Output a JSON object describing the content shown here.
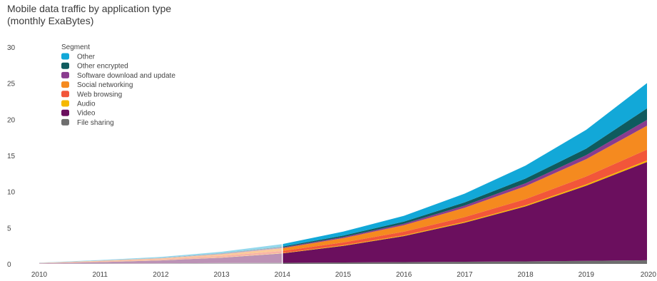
{
  "title": "Mobile data traffic by application type",
  "subtitle": "(monthly ExaBytes)",
  "chart_data": {
    "type": "area",
    "stacked": true,
    "title": "Mobile data traffic by application type",
    "subtitle": "(monthly ExaBytes)",
    "xlabel": "",
    "ylabel": "",
    "x": [
      "2010",
      "2011",
      "2012",
      "2013",
      "2014",
      "2015",
      "2016",
      "2017",
      "2018",
      "2019",
      "2020"
    ],
    "ylim": [
      0,
      30
    ],
    "yticks": [
      0,
      5,
      10,
      15,
      20,
      25,
      30
    ],
    "grid": false,
    "forecast_from": "2014",
    "legend": {
      "title": "Segment",
      "placement": "top-left"
    },
    "series": [
      {
        "name": "File sharing",
        "color": "#6e6e6e",
        "values": [
          0.02,
          0.05,
          0.08,
          0.12,
          0.15,
          0.2,
          0.25,
          0.3,
          0.35,
          0.42,
          0.5
        ]
      },
      {
        "name": "Video",
        "color": "#6b0f5e",
        "values": [
          0.05,
          0.2,
          0.4,
          0.75,
          1.3,
          2.3,
          3.6,
          5.4,
          7.6,
          10.4,
          13.6
        ]
      },
      {
        "name": "Audio",
        "color": "#f5b800",
        "values": [
          0.01,
          0.02,
          0.03,
          0.04,
          0.06,
          0.08,
          0.1,
          0.12,
          0.15,
          0.18,
          0.22
        ]
      },
      {
        "name": "Web browsing",
        "color": "#f2563a",
        "values": [
          0.03,
          0.08,
          0.13,
          0.2,
          0.28,
          0.38,
          0.5,
          0.65,
          0.85,
          1.1,
          1.5
        ]
      },
      {
        "name": "Social networking",
        "color": "#f58a1f",
        "values": [
          0.02,
          0.07,
          0.12,
          0.22,
          0.38,
          0.6,
          0.9,
          1.3,
          1.8,
          2.4,
          3.3
        ]
      },
      {
        "name": "Software download and update",
        "color": "#8a3c8f",
        "values": [
          0.01,
          0.02,
          0.04,
          0.07,
          0.1,
          0.15,
          0.2,
          0.3,
          0.4,
          0.55,
          0.8
        ]
      },
      {
        "name": "Other encrypted",
        "color": "#0f5b5e",
        "values": [
          0.01,
          0.02,
          0.04,
          0.08,
          0.12,
          0.2,
          0.3,
          0.45,
          0.65,
          0.9,
          1.6
        ]
      },
      {
        "name": "Other",
        "color": "#12a8d8",
        "values": [
          0.02,
          0.07,
          0.12,
          0.2,
          0.35,
          0.55,
          0.8,
          1.2,
          1.8,
          2.6,
          3.5
        ]
      }
    ]
  }
}
